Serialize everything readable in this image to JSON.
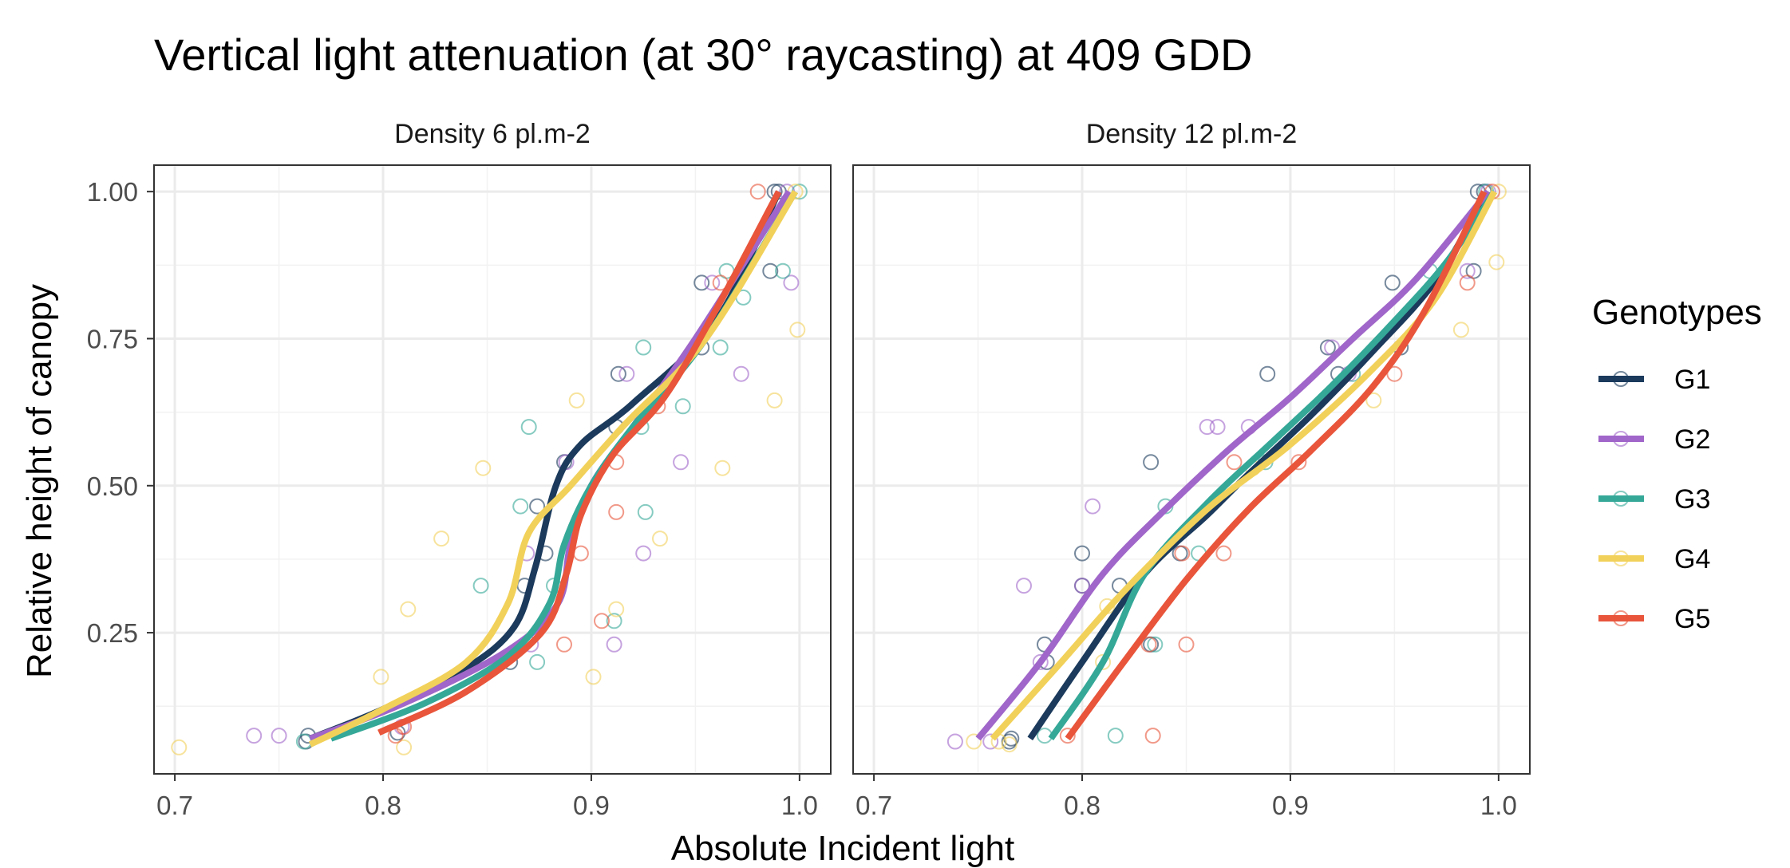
{
  "chart_data": {
    "type": "scatter",
    "title": "Vertical light attenuation (at 30° raycasting) at 409 GDD",
    "xlabel": "Absolute Incident light",
    "ylabel": "Relative height of canopy",
    "xlim": [
      0.69,
      1.015
    ],
    "ylim": [
      0.01,
      1.045
    ],
    "x_ticks": [
      0.7,
      0.8,
      0.9,
      1.0
    ],
    "x_tick_labels": [
      "0.7",
      "0.8",
      "0.9",
      "1.0"
    ],
    "y_ticks": [
      0.25,
      0.5,
      0.75,
      1.0
    ],
    "y_tick_labels": [
      "0.25",
      "0.50",
      "0.75",
      "1.00"
    ],
    "grid": true,
    "legend": {
      "title": "Genotypes",
      "placement": "right",
      "items": [
        {
          "name": "G1",
          "color": "#1b3a5c"
        },
        {
          "name": "G2",
          "color": "#a066c9"
        },
        {
          "name": "G3",
          "color": "#35a898"
        },
        {
          "name": "G4",
          "color": "#f2d15a"
        },
        {
          "name": "G5",
          "color": "#e8553b"
        }
      ]
    },
    "panels": [
      {
        "label": "Density 6 pl.m-2",
        "series": [
          {
            "name": "G1",
            "points": [
              [
                0.763,
                0.065
              ],
              [
                0.764,
                0.075
              ],
              [
                0.807,
                0.08
              ],
              [
                0.861,
                0.2
              ],
              [
                0.868,
                0.33
              ],
              [
                0.874,
                0.465
              ],
              [
                0.878,
                0.385
              ],
              [
                0.887,
                0.54
              ],
              [
                0.912,
                0.6
              ],
              [
                0.913,
                0.69
              ],
              [
                0.953,
                0.735
              ],
              [
                0.953,
                0.845
              ],
              [
                0.986,
                0.865
              ],
              [
                0.988,
                1.0
              ],
              [
                0.99,
                1.0
              ]
            ],
            "curve": [
              [
                0.765,
                0.07
              ],
              [
                0.8,
                0.12
              ],
              [
                0.84,
                0.19
              ],
              [
                0.863,
                0.26
              ],
              [
                0.873,
                0.36
              ],
              [
                0.883,
                0.5
              ],
              [
                0.895,
                0.57
              ],
              [
                0.92,
                0.64
              ],
              [
                0.96,
                0.78
              ],
              [
                0.99,
                1.0
              ]
            ]
          },
          {
            "name": "G2",
            "points": [
              [
                0.738,
                0.075
              ],
              [
                0.75,
                0.075
              ],
              [
                0.809,
                0.09
              ],
              [
                0.871,
                0.23
              ],
              [
                0.869,
                0.385
              ],
              [
                0.888,
                0.54
              ],
              [
                0.917,
                0.69
              ],
              [
                0.911,
                0.23
              ],
              [
                0.925,
                0.385
              ],
              [
                0.943,
                0.54
              ],
              [
                0.958,
                0.845
              ],
              [
                0.972,
                0.69
              ],
              [
                0.996,
                0.845
              ],
              [
                0.994,
                1.0
              ]
            ],
            "curve": [
              [
                0.765,
                0.07
              ],
              [
                0.81,
                0.13
              ],
              [
                0.86,
                0.22
              ],
              [
                0.884,
                0.3
              ],
              [
                0.89,
                0.4
              ],
              [
                0.9,
                0.5
              ],
              [
                0.92,
                0.6
              ],
              [
                0.95,
                0.75
              ],
              [
                0.995,
                1.0
              ]
            ]
          },
          {
            "name": "G3",
            "points": [
              [
                0.762,
                0.065
              ],
              [
                0.847,
                0.33
              ],
              [
                0.874,
                0.2
              ],
              [
                0.882,
                0.33
              ],
              [
                0.866,
                0.465
              ],
              [
                0.87,
                0.6
              ],
              [
                0.925,
                0.735
              ],
              [
                0.924,
                0.6
              ],
              [
                0.926,
                0.455
              ],
              [
                0.911,
                0.27
              ],
              [
                0.944,
                0.635
              ],
              [
                0.962,
                0.735
              ],
              [
                0.973,
                0.82
              ],
              [
                0.965,
                0.865
              ],
              [
                0.992,
                0.865
              ],
              [
                1.0,
                1.0
              ]
            ],
            "curve": [
              [
                0.775,
                0.07
              ],
              [
                0.82,
                0.13
              ],
              [
                0.86,
                0.21
              ],
              [
                0.88,
                0.3
              ],
              [
                0.887,
                0.4
              ],
              [
                0.9,
                0.5
              ],
              [
                0.92,
                0.6
              ],
              [
                0.955,
                0.75
              ],
              [
                0.998,
                1.0
              ]
            ]
          },
          {
            "name": "G4",
            "points": [
              [
                0.702,
                0.055
              ],
              [
                0.799,
                0.175
              ],
              [
                0.81,
                0.055
              ],
              [
                0.812,
                0.29
              ],
              [
                0.828,
                0.41
              ],
              [
                0.848,
                0.53
              ],
              [
                0.893,
                0.645
              ],
              [
                0.901,
                0.175
              ],
              [
                0.912,
                0.29
              ],
              [
                0.933,
                0.41
              ],
              [
                0.963,
                0.53
              ],
              [
                0.988,
                0.645
              ],
              [
                0.999,
                0.765
              ],
              [
                0.998,
                1.0
              ]
            ],
            "curve": [
              [
                0.765,
                0.06
              ],
              [
                0.8,
                0.12
              ],
              [
                0.84,
                0.2
              ],
              [
                0.86,
                0.3
              ],
              [
                0.87,
                0.42
              ],
              [
                0.89,
                0.5
              ],
              [
                0.915,
                0.6
              ],
              [
                0.955,
                0.75
              ],
              [
                0.998,
                1.0
              ]
            ]
          },
          {
            "name": "G5",
            "points": [
              [
                0.81,
                0.09
              ],
              [
                0.806,
                0.075
              ],
              [
                0.887,
                0.23
              ],
              [
                0.895,
                0.385
              ],
              [
                0.905,
                0.27
              ],
              [
                0.912,
                0.455
              ],
              [
                0.912,
                0.54
              ],
              [
                0.932,
                0.635
              ],
              [
                0.962,
                0.845
              ],
              [
                0.98,
                1.0
              ]
            ],
            "curve": [
              [
                0.798,
                0.08
              ],
              [
                0.84,
                0.15
              ],
              [
                0.876,
                0.25
              ],
              [
                0.888,
                0.35
              ],
              [
                0.895,
                0.45
              ],
              [
                0.91,
                0.55
              ],
              [
                0.935,
                0.65
              ],
              [
                0.96,
                0.8
              ],
              [
                0.99,
                1.0
              ]
            ]
          }
        ]
      },
      {
        "label": "Density 12 pl.m-2",
        "series": [
          {
            "name": "G1",
            "points": [
              [
                0.765,
                0.065
              ],
              [
                0.766,
                0.07
              ],
              [
                0.782,
                0.23
              ],
              [
                0.783,
                0.2
              ],
              [
                0.8,
                0.385
              ],
              [
                0.8,
                0.33
              ],
              [
                0.818,
                0.33
              ],
              [
                0.833,
                0.23
              ],
              [
                0.847,
                0.385
              ],
              [
                0.833,
                0.54
              ],
              [
                0.889,
                0.69
              ],
              [
                0.918,
                0.735
              ],
              [
                0.923,
                0.69
              ],
              [
                0.949,
                0.845
              ],
              [
                0.953,
                0.735
              ],
              [
                0.988,
                0.865
              ],
              [
                0.99,
                1.0
              ],
              [
                0.993,
                1.0
              ]
            ],
            "curve": [
              [
                0.775,
                0.07
              ],
              [
                0.8,
                0.2
              ],
              [
                0.83,
                0.35
              ],
              [
                0.86,
                0.45
              ],
              [
                0.88,
                0.52
              ],
              [
                0.91,
                0.62
              ],
              [
                0.94,
                0.73
              ],
              [
                0.97,
                0.85
              ],
              [
                0.995,
                1.0
              ]
            ]
          },
          {
            "name": "G2",
            "points": [
              [
                0.739,
                0.065
              ],
              [
                0.756,
                0.065
              ],
              [
                0.772,
                0.33
              ],
              [
                0.78,
                0.2
              ],
              [
                0.8,
                0.33
              ],
              [
                0.805,
                0.465
              ],
              [
                0.86,
                0.6
              ],
              [
                0.865,
                0.6
              ],
              [
                0.88,
                0.6
              ],
              [
                0.92,
                0.735
              ],
              [
                0.928,
                0.69
              ],
              [
                0.985,
                0.865
              ],
              [
                0.995,
                1.0
              ]
            ],
            "curve": [
              [
                0.75,
                0.07
              ],
              [
                0.78,
                0.2
              ],
              [
                0.81,
                0.35
              ],
              [
                0.84,
                0.46
              ],
              [
                0.87,
                0.56
              ],
              [
                0.9,
                0.65
              ],
              [
                0.93,
                0.75
              ],
              [
                0.96,
                0.85
              ],
              [
                0.995,
                1.0
              ]
            ]
          },
          {
            "name": "G3",
            "points": [
              [
                0.782,
                0.075
              ],
              [
                0.816,
                0.075
              ],
              [
                0.835,
                0.23
              ],
              [
                0.84,
                0.465
              ],
              [
                0.856,
                0.385
              ],
              [
                0.888,
                0.54
              ],
              [
                0.93,
                0.69
              ],
              [
                0.967,
                0.865
              ],
              [
                0.994,
                1.0
              ]
            ],
            "curve": [
              [
                0.785,
                0.07
              ],
              [
                0.81,
                0.2
              ],
              [
                0.83,
                0.35
              ],
              [
                0.86,
                0.47
              ],
              [
                0.89,
                0.57
              ],
              [
                0.92,
                0.67
              ],
              [
                0.95,
                0.78
              ],
              [
                0.975,
                0.88
              ],
              [
                0.998,
                1.0
              ]
            ]
          },
          {
            "name": "G4",
            "points": [
              [
                0.748,
                0.065
              ],
              [
                0.76,
                0.065
              ],
              [
                0.765,
                0.06
              ],
              [
                0.812,
                0.295
              ],
              [
                0.81,
                0.2
              ],
              [
                0.882,
                0.53
              ],
              [
                0.94,
                0.645
              ],
              [
                0.982,
                0.765
              ],
              [
                0.999,
                0.88
              ],
              [
                1.0,
                1.0
              ]
            ],
            "curve": [
              [
                0.757,
                0.07
              ],
              [
                0.79,
                0.2
              ],
              [
                0.82,
                0.32
              ],
              [
                0.86,
                0.46
              ],
              [
                0.9,
                0.57
              ],
              [
                0.94,
                0.7
              ],
              [
                0.97,
                0.82
              ],
              [
                0.998,
                1.0
              ]
            ]
          },
          {
            "name": "G5",
            "points": [
              [
                0.793,
                0.075
              ],
              [
                0.834,
                0.075
              ],
              [
                0.832,
                0.23
              ],
              [
                0.85,
                0.23
              ],
              [
                0.848,
                0.385
              ],
              [
                0.868,
                0.385
              ],
              [
                0.873,
                0.54
              ],
              [
                0.904,
                0.54
              ],
              [
                0.95,
                0.69
              ],
              [
                0.985,
                0.845
              ],
              [
                0.997,
                1.0
              ]
            ],
            "curve": [
              [
                0.793,
                0.07
              ],
              [
                0.82,
                0.2
              ],
              [
                0.85,
                0.34
              ],
              [
                0.88,
                0.46
              ],
              [
                0.91,
                0.56
              ],
              [
                0.94,
                0.67
              ],
              [
                0.965,
                0.8
              ],
              [
                0.993,
                1.0
              ]
            ]
          }
        ]
      }
    ]
  }
}
